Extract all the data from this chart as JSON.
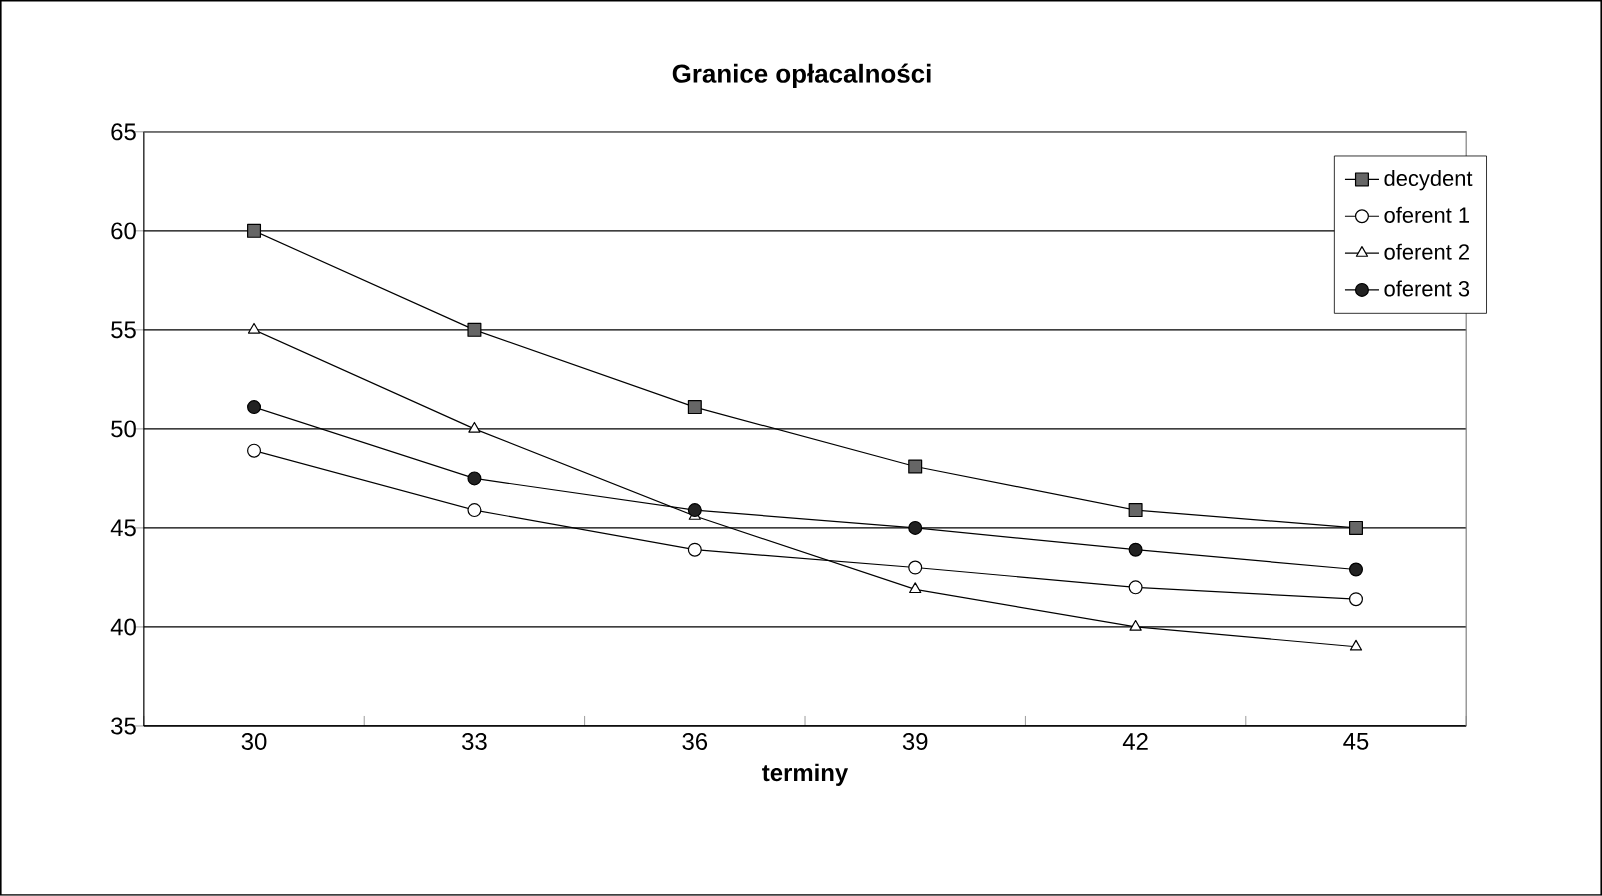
{
  "chart_data": {
    "type": "line",
    "title": "Granice opłacalności",
    "xlabel": "terminy",
    "categories": [
      "30",
      "33",
      "36",
      "39",
      "42",
      "45"
    ],
    "series": [
      {
        "name": "decydent",
        "color": "#666666",
        "marker": "square",
        "values": [
          60,
          55,
          51.1,
          48.1,
          45.9,
          45
        ]
      },
      {
        "name": "oferent 1",
        "color": "#ffffff",
        "marker": "circle",
        "values": [
          48.9,
          45.9,
          43.9,
          43,
          42,
          41.4
        ]
      },
      {
        "name": "oferent 2",
        "color": "#ffffff",
        "marker": "triangle",
        "values": [
          55,
          50,
          45.6,
          41.9,
          40,
          39
        ]
      },
      {
        "name": "oferent 3",
        "color": "#222222",
        "marker": "circle",
        "values": [
          51.1,
          47.5,
          45.9,
          45,
          43.9,
          42.9
        ]
      }
    ],
    "ylim": [
      35,
      65
    ],
    "yticks": [
      35,
      40,
      45,
      50,
      55,
      60,
      65
    ],
    "grid": "y",
    "legend": "top right",
    "line_style": "solid"
  }
}
